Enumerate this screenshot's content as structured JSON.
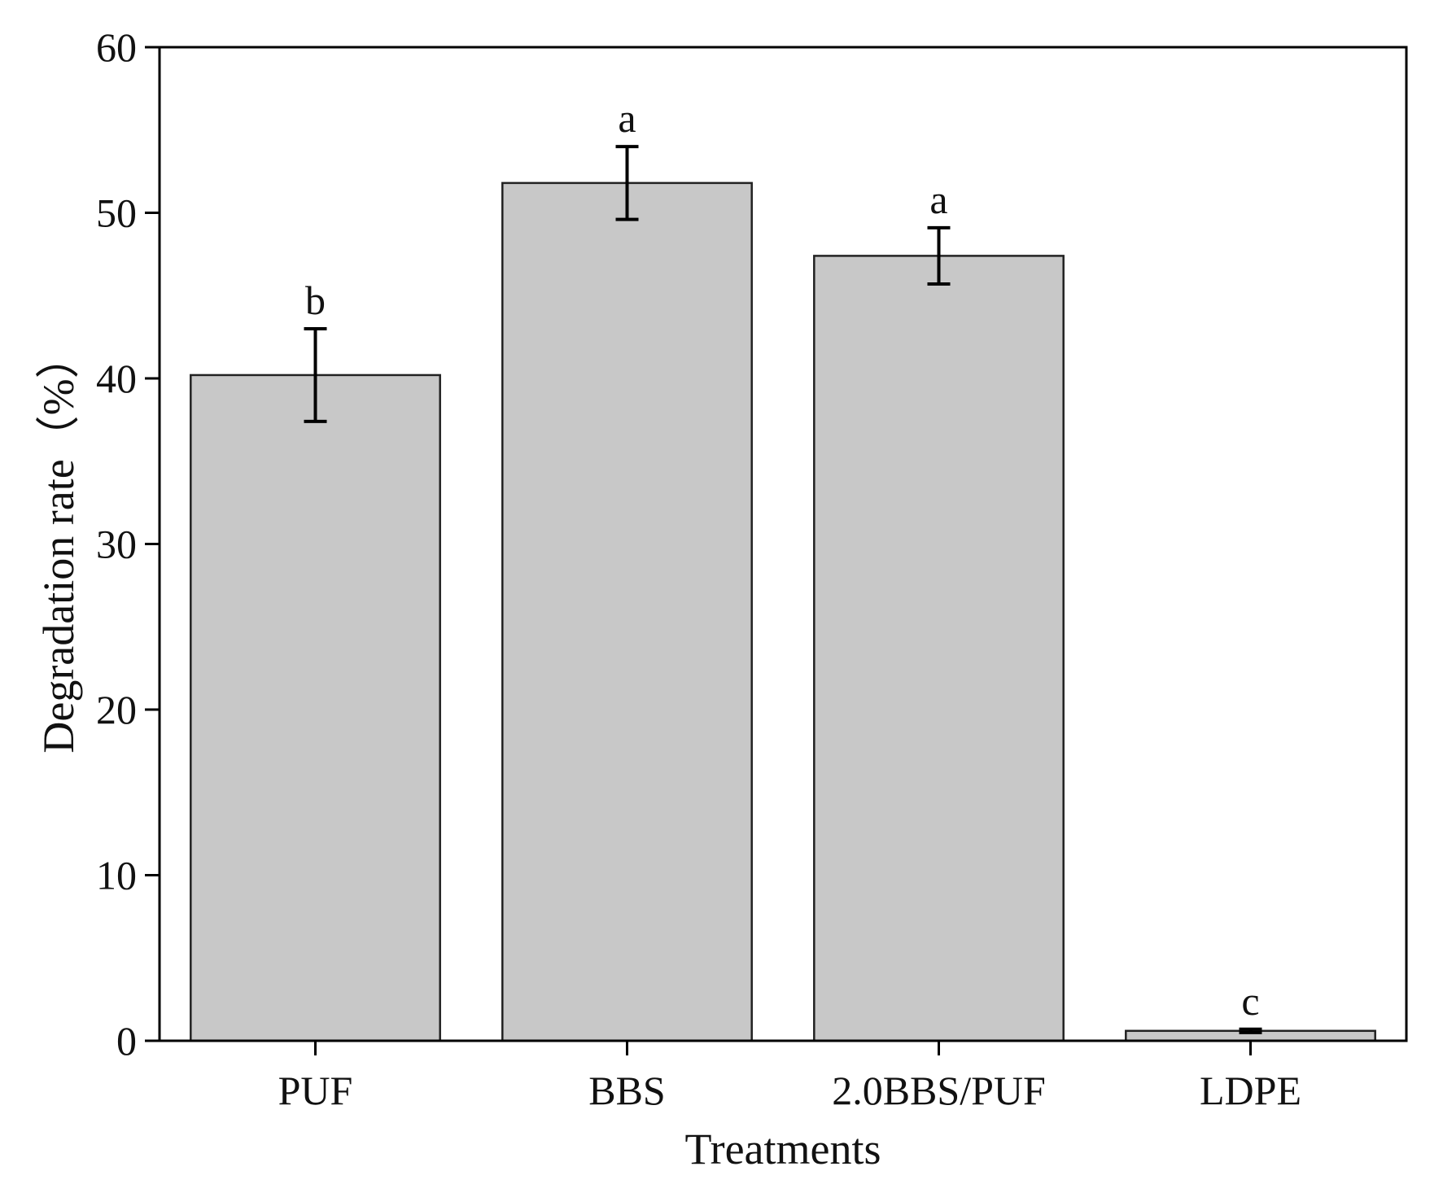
{
  "chart_data": {
    "type": "bar",
    "title": "",
    "xlabel": "Treatments",
    "ylabel": "Degradation rate（%）",
    "categories": [
      "PUF",
      "BBS",
      "2.0BBS/PUF",
      "LDPE"
    ],
    "values": [
      40.2,
      51.8,
      47.4,
      0.6
    ],
    "errors": [
      2.8,
      2.2,
      1.7,
      0.1
    ],
    "significance": [
      "b",
      "a",
      "a",
      "c"
    ],
    "ylim": [
      0,
      60
    ],
    "yticks": [
      0,
      10,
      20,
      30,
      40,
      50,
      60
    ],
    "grid": false,
    "legend": "none",
    "colors": {
      "bar_fill": "#c8c8c8",
      "bar_stroke": "#222222",
      "axis": "#000000",
      "error_bar": "#000000"
    }
  }
}
